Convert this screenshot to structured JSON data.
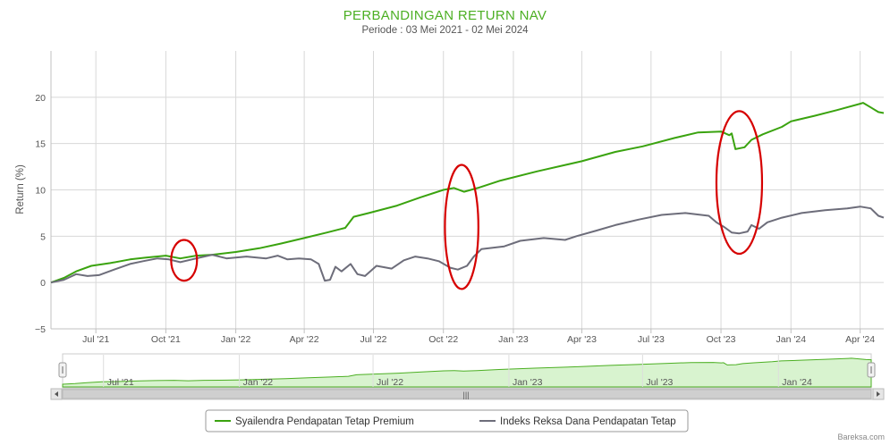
{
  "header": {
    "title": "PERBANDINGAN RETURN NAV",
    "subtitle": "Periode : 03 Mei 2021 - 02 Mei 2024"
  },
  "credit": "Bareksa.com",
  "navigator": {
    "tick_labels": [
      "Jul '21",
      "Jan '22",
      "Jul '22",
      "Jan '23",
      "Jul '23",
      "Jan '24"
    ],
    "scrollbar_grip": "|||"
  },
  "colors": {
    "series1": "#3aa30f",
    "series2": "#6d6d7a",
    "highlight": "#d60000",
    "grid": "#d8d8d8",
    "navigator_fill": "#d8f3cf"
  },
  "chart_data": {
    "type": "line",
    "title": "PERBANDINGAN RETURN NAV",
    "subtitle": "Periode : 03 Mei 2021 - 02 Mei 2024",
    "xlabel": "",
    "ylabel": "Return (%)",
    "xlim": [
      "2021-05-03",
      "2024-05-02"
    ],
    "ylim": [
      -5,
      25
    ],
    "yticks": [
      -5,
      0,
      5,
      10,
      15,
      20
    ],
    "xticks": [
      {
        "date": "2021-07-01",
        "label": "Jul '21"
      },
      {
        "date": "2021-10-01",
        "label": "Oct '21"
      },
      {
        "date": "2022-01-01",
        "label": "Jan '22"
      },
      {
        "date": "2022-04-01",
        "label": "Apr '22"
      },
      {
        "date": "2022-07-01",
        "label": "Jul '22"
      },
      {
        "date": "2022-10-01",
        "label": "Oct '22"
      },
      {
        "date": "2023-01-01",
        "label": "Jan '23"
      },
      {
        "date": "2023-04-01",
        "label": "Apr '23"
      },
      {
        "date": "2023-07-01",
        "label": "Jul '23"
      },
      {
        "date": "2023-10-01",
        "label": "Oct '23"
      },
      {
        "date": "2024-01-01",
        "label": "Jan '24"
      },
      {
        "date": "2024-04-01",
        "label": "Apr '24"
      }
    ],
    "grid": true,
    "legend_position": "bottom-center",
    "series": [
      {
        "name": "Syailendra Pendapatan Tetap Premium",
        "color": "#3aa30f",
        "points": [
          [
            "2021-05-03",
            0.0
          ],
          [
            "2021-05-20",
            0.5
          ],
          [
            "2021-06-05",
            1.2
          ],
          [
            "2021-06-25",
            1.8
          ],
          [
            "2021-07-20",
            2.1
          ],
          [
            "2021-08-15",
            2.5
          ],
          [
            "2021-09-05",
            2.7
          ],
          [
            "2021-10-01",
            2.9
          ],
          [
            "2021-10-20",
            2.6
          ],
          [
            "2021-11-10",
            2.9
          ],
          [
            "2021-12-01",
            3.0
          ],
          [
            "2022-01-01",
            3.3
          ],
          [
            "2022-02-01",
            3.7
          ],
          [
            "2022-03-01",
            4.2
          ],
          [
            "2022-04-01",
            4.8
          ],
          [
            "2022-05-01",
            5.4
          ],
          [
            "2022-05-25",
            5.9
          ],
          [
            "2022-06-05",
            7.1
          ],
          [
            "2022-06-25",
            7.5
          ],
          [
            "2022-08-01",
            8.3
          ],
          [
            "2022-09-01",
            9.2
          ],
          [
            "2022-10-01",
            10.0
          ],
          [
            "2022-10-15",
            10.2
          ],
          [
            "2022-10-28",
            9.8
          ],
          [
            "2022-11-15",
            10.2
          ],
          [
            "2022-12-15",
            11.0
          ],
          [
            "2023-02-01",
            12.0
          ],
          [
            "2023-04-01",
            13.1
          ],
          [
            "2023-05-15",
            14.1
          ],
          [
            "2023-06-20",
            14.7
          ],
          [
            "2023-08-01",
            15.6
          ],
          [
            "2023-09-01",
            16.2
          ],
          [
            "2023-10-01",
            16.3
          ],
          [
            "2023-10-12",
            15.9
          ],
          [
            "2023-10-15",
            16.1
          ],
          [
            "2023-10-20",
            14.4
          ],
          [
            "2023-11-01",
            14.6
          ],
          [
            "2023-11-10",
            15.4
          ],
          [
            "2023-11-25",
            16.0
          ],
          [
            "2023-12-20",
            16.8
          ],
          [
            "2024-01-01",
            17.4
          ],
          [
            "2024-02-01",
            18.0
          ],
          [
            "2024-03-01",
            18.6
          ],
          [
            "2024-04-01",
            19.3
          ],
          [
            "2024-04-05",
            19.4
          ],
          [
            "2024-04-15",
            18.9
          ],
          [
            "2024-04-25",
            18.4
          ],
          [
            "2024-05-02",
            18.3
          ]
        ]
      },
      {
        "name": "Indeks Reksa Dana Pendapatan Tetap",
        "color": "#6d6d7a",
        "points": [
          [
            "2021-05-03",
            0.0
          ],
          [
            "2021-05-20",
            0.3
          ],
          [
            "2021-06-05",
            0.9
          ],
          [
            "2021-06-20",
            0.7
          ],
          [
            "2021-07-05",
            0.8
          ],
          [
            "2021-07-25",
            1.4
          ],
          [
            "2021-08-15",
            2.0
          ],
          [
            "2021-09-01",
            2.3
          ],
          [
            "2021-09-20",
            2.6
          ],
          [
            "2021-10-05",
            2.5
          ],
          [
            "2021-10-20",
            2.2
          ],
          [
            "2021-11-10",
            2.6
          ],
          [
            "2021-12-01",
            3.0
          ],
          [
            "2021-12-20",
            2.6
          ],
          [
            "2022-01-15",
            2.8
          ],
          [
            "2022-02-10",
            2.6
          ],
          [
            "2022-02-25",
            2.9
          ],
          [
            "2022-03-10",
            2.5
          ],
          [
            "2022-03-25",
            2.6
          ],
          [
            "2022-04-10",
            2.5
          ],
          [
            "2022-04-20",
            2.0
          ],
          [
            "2022-04-28",
            0.2
          ],
          [
            "2022-05-05",
            0.3
          ],
          [
            "2022-05-12",
            1.7
          ],
          [
            "2022-05-20",
            1.2
          ],
          [
            "2022-06-01",
            2.0
          ],
          [
            "2022-06-10",
            0.9
          ],
          [
            "2022-06-20",
            0.7
          ],
          [
            "2022-07-05",
            1.8
          ],
          [
            "2022-07-25",
            1.5
          ],
          [
            "2022-08-10",
            2.4
          ],
          [
            "2022-08-25",
            2.8
          ],
          [
            "2022-09-10",
            2.6
          ],
          [
            "2022-09-25",
            2.3
          ],
          [
            "2022-10-10",
            1.6
          ],
          [
            "2022-10-20",
            1.4
          ],
          [
            "2022-11-01",
            1.8
          ],
          [
            "2022-11-10",
            2.8
          ],
          [
            "2022-11-20",
            3.6
          ],
          [
            "2022-12-20",
            3.9
          ],
          [
            "2023-01-10",
            4.5
          ],
          [
            "2023-02-10",
            4.8
          ],
          [
            "2023-03-10",
            4.6
          ],
          [
            "2023-03-25",
            5.0
          ],
          [
            "2023-04-20",
            5.6
          ],
          [
            "2023-05-15",
            6.2
          ],
          [
            "2023-06-15",
            6.8
          ],
          [
            "2023-07-15",
            7.3
          ],
          [
            "2023-08-15",
            7.5
          ],
          [
            "2023-09-15",
            7.2
          ],
          [
            "2023-09-25",
            6.5
          ],
          [
            "2023-10-05",
            6.0
          ],
          [
            "2023-10-15",
            5.4
          ],
          [
            "2023-10-25",
            5.3
          ],
          [
            "2023-11-05",
            5.5
          ],
          [
            "2023-11-10",
            6.2
          ],
          [
            "2023-11-20",
            5.8
          ],
          [
            "2023-12-01",
            6.5
          ],
          [
            "2023-12-20",
            7.0
          ],
          [
            "2024-01-15",
            7.5
          ],
          [
            "2024-02-15",
            7.8
          ],
          [
            "2024-03-15",
            8.0
          ],
          [
            "2024-04-01",
            8.2
          ],
          [
            "2024-04-15",
            8.0
          ],
          [
            "2024-04-25",
            7.2
          ],
          [
            "2024-05-02",
            7.0
          ]
        ]
      }
    ],
    "annotations": [
      {
        "type": "ellipse",
        "center_date": "2021-10-25",
        "center_y": 2.4,
        "rx_days": 17,
        "ry": 2.2
      },
      {
        "type": "ellipse",
        "center_date": "2022-10-25",
        "center_y": 6.0,
        "rx_days": 22,
        "ry": 6.7
      },
      {
        "type": "ellipse",
        "center_date": "2023-10-25",
        "center_y": 10.8,
        "rx_days": 30,
        "ry": 7.7
      }
    ]
  }
}
